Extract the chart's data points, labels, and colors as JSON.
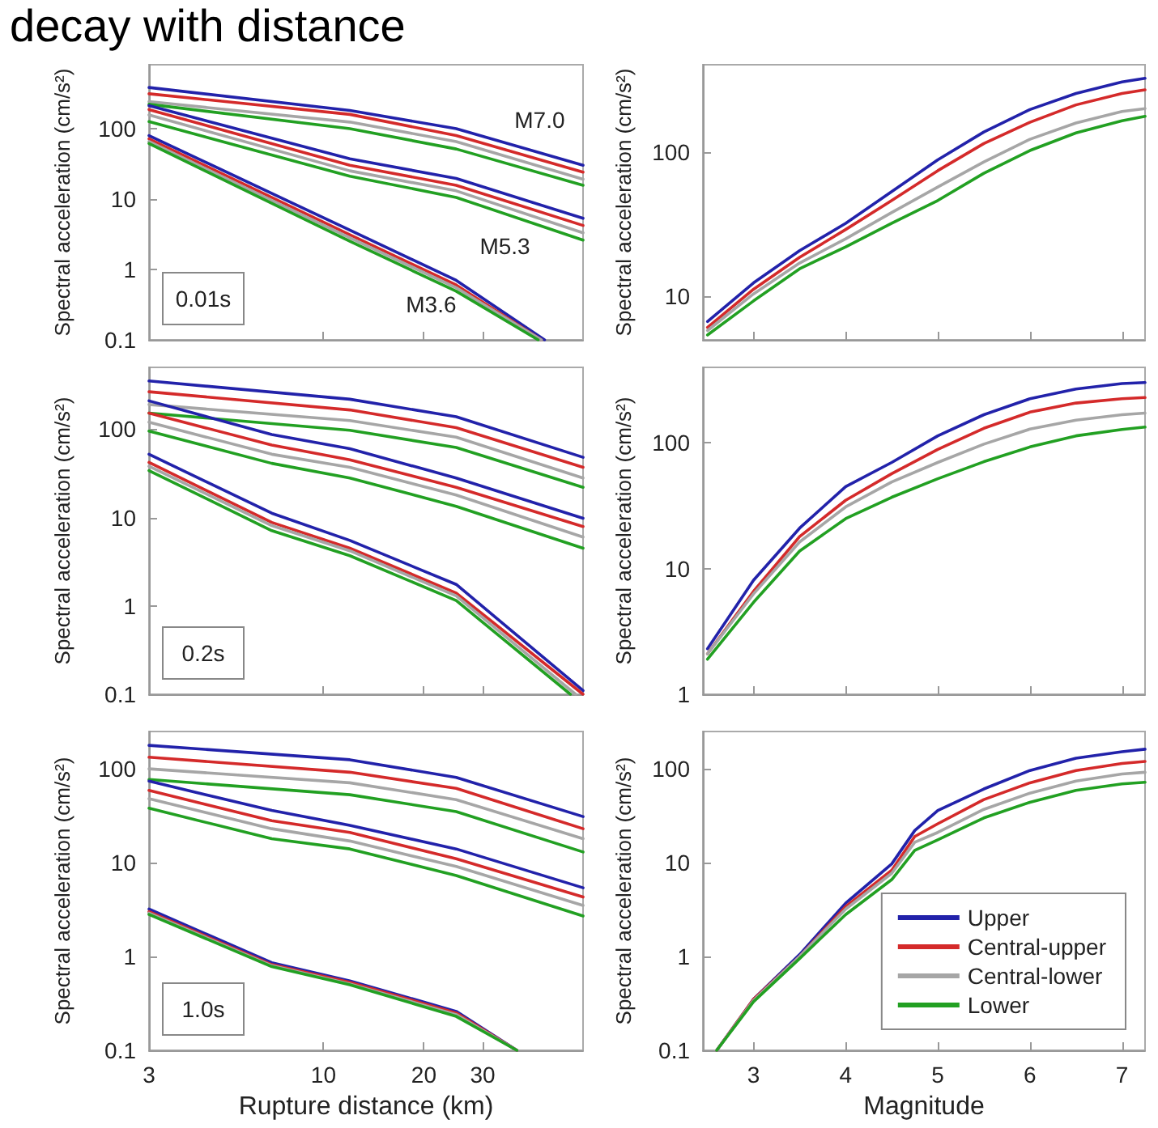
{
  "chart_data": [
    {
      "type": "line",
      "ylabel": "Spectral acceleration (cm/s²)",
      "log": "xy",
      "xlim": [
        3,
        60
      ],
      "xticks": [
        3,
        10,
        20,
        30
      ],
      "ylim": [
        0.1,
        800
      ],
      "yticks": [
        0.1,
        1,
        10,
        100
      ],
      "tick_labels": "y",
      "marker": "none",
      "grid": false,
      "annotations": [
        "0.01s",
        "decay with distance",
        "M7.0",
        "M5.3",
        "M3.6"
      ],
      "series": [
        {
          "color": "#2222aa",
          "x": [
            3,
            12,
            25,
            60
          ],
          "values": [
            380,
            180,
            99,
            30
          ]
        },
        {
          "color": "#d42a2a",
          "x": [
            3,
            12,
            25,
            60
          ],
          "values": [
            310,
            158,
            79,
            24
          ]
        },
        {
          "color": "#a6a6a6",
          "x": [
            3,
            12,
            25,
            60
          ],
          "values": [
            240,
            123,
            65,
            19
          ]
        },
        {
          "color": "#22a022",
          "x": [
            3,
            12,
            25,
            60
          ],
          "values": [
            220,
            99,
            51,
            15.6
          ]
        },
        {
          "color": "#2222aa",
          "x": [
            3,
            12,
            25,
            60
          ],
          "values": [
            210,
            37,
            19.5,
            5.3
          ]
        },
        {
          "color": "#d42a2a",
          "x": [
            3,
            12,
            25,
            60
          ],
          "values": [
            185,
            30,
            15.6,
            4.2
          ]
        },
        {
          "color": "#a6a6a6",
          "x": [
            3,
            12,
            25,
            60
          ],
          "values": [
            155,
            25,
            13,
            3.3
          ]
        },
        {
          "color": "#22a022",
          "x": [
            3,
            12,
            25,
            60
          ],
          "values": [
            125,
            21,
            10.5,
            2.6
          ]
        },
        {
          "color": "#2222aa",
          "x": [
            3,
            12,
            25,
            46
          ],
          "values": [
            79,
            3.6,
            0.7,
            0.1
          ]
        },
        {
          "color": "#d42a2a",
          "x": [
            3,
            12,
            25,
            45
          ],
          "values": [
            71,
            3.1,
            0.6,
            0.1
          ]
        },
        {
          "color": "#a6a6a6",
          "x": [
            3,
            12,
            25,
            45
          ],
          "values": [
            65,
            2.8,
            0.55,
            0.1
          ]
        },
        {
          "color": "#22a022",
          "x": [
            3,
            12,
            25,
            44
          ],
          "values": [
            61,
            2.5,
            0.49,
            0.1
          ]
        }
      ]
    },
    {
      "type": "line",
      "ylabel": "Spectral acceleration (cm/s²)",
      "log": "y",
      "xlim": [
        2.45,
        7.25
      ],
      "xticks": [
        3,
        4,
        5,
        6,
        7
      ],
      "ylim": [
        5,
        400
      ],
      "yticks": [
        10,
        100
      ],
      "tick_labels": "y",
      "marker": "none",
      "grid": false,
      "x": [
        2.5,
        3,
        3.5,
        4,
        4.5,
        5,
        5.5,
        6,
        6.5,
        7,
        7.25
      ],
      "series": [
        {
          "color": "#2222aa",
          "values": [
            6.7,
            12.4,
            20.7,
            32,
            53,
            88,
            137,
            196,
            253,
            304,
            322
          ]
        },
        {
          "color": "#d42a2a",
          "values": [
            6.1,
            11.2,
            18.6,
            29,
            46,
            74,
            114,
            160,
            211,
            253,
            268
          ]
        },
        {
          "color": "#a6a6a6",
          "values": [
            5.8,
            10.4,
            17,
            25,
            38,
            57,
            85,
            122,
            158,
            190,
            199
          ]
        },
        {
          "color": "#22a022",
          "values": [
            5.4,
            9.3,
            15.5,
            22,
            32,
            46,
            71,
            102,
            135,
            164,
            176
          ]
        }
      ]
    },
    {
      "type": "line",
      "ylabel": "Spectral acceleration (cm/s²)",
      "log": "xy",
      "xlim": [
        3,
        60
      ],
      "xticks": [
        3,
        10,
        20,
        30
      ],
      "ylim": [
        0.1,
        500
      ],
      "yticks": [
        0.1,
        1,
        10,
        100
      ],
      "tick_labels": "y",
      "marker": "none",
      "grid": false,
      "annotations": [
        "0.2s"
      ],
      "series": [
        {
          "color": "#2222aa",
          "x": [
            3,
            12,
            25,
            60
          ],
          "values": [
            351,
            218,
            138,
            48
          ]
        },
        {
          "color": "#d42a2a",
          "x": [
            3,
            12,
            25,
            60
          ],
          "values": [
            265,
            165,
            104,
            37
          ]
        },
        {
          "color": "#a6a6a6",
          "x": [
            3,
            12,
            25,
            60
          ],
          "values": [
            190,
            125,
            81,
            28
          ]
        },
        {
          "color": "#22a022",
          "x": [
            3,
            12,
            25,
            60
          ],
          "values": [
            152,
            97,
            62,
            22
          ]
        },
        {
          "color": "#2222aa",
          "x": [
            3,
            7,
            12,
            25,
            60
          ],
          "values": [
            209,
            87,
            60,
            28,
            9.8
          ]
        },
        {
          "color": "#d42a2a",
          "x": [
            3,
            7,
            12,
            25,
            60
          ],
          "values": [
            152,
            66,
            45,
            22,
            7.9
          ]
        },
        {
          "color": "#a6a6a6",
          "x": [
            3,
            7,
            12,
            25,
            60
          ],
          "values": [
            120,
            52,
            37,
            18,
            6
          ]
        },
        {
          "color": "#22a022",
          "x": [
            3,
            7,
            12,
            25,
            60
          ],
          "values": [
            95,
            41,
            28,
            13.4,
            4.5
          ]
        },
        {
          "color": "#2222aa",
          "x": [
            3,
            7,
            12,
            25,
            60
          ],
          "values": [
            52,
            11.2,
            5.5,
            1.75,
            0.11
          ]
        },
        {
          "color": "#d42a2a",
          "x": [
            3,
            7,
            12,
            25,
            60
          ],
          "values": [
            42,
            8.8,
            4.5,
            1.4,
            0.1
          ]
        },
        {
          "color": "#a6a6a6",
          "x": [
            3,
            7,
            12,
            25,
            57
          ],
          "values": [
            38,
            8.1,
            4.2,
            1.3,
            0.1
          ]
        },
        {
          "color": "#22a022",
          "x": [
            3,
            7,
            12,
            25,
            55
          ],
          "values": [
            34,
            7.1,
            3.7,
            1.15,
            0.1
          ]
        }
      ]
    },
    {
      "type": "line",
      "ylabel": "Spectral acceleration (cm/s²)",
      "log": "y",
      "xlim": [
        2.45,
        7.25
      ],
      "xticks": [
        3,
        4,
        5,
        6,
        7
      ],
      "ylim": [
        1,
        400
      ],
      "yticks": [
        1,
        10,
        100
      ],
      "tick_labels": "y",
      "marker": "none",
      "grid": false,
      "x": [
        2.5,
        3,
        3.5,
        4,
        4.5,
        5,
        5.5,
        6,
        6.5,
        7,
        7.25
      ],
      "series": [
        {
          "color": "#2222aa",
          "values": [
            2.3,
            8.1,
            21,
            45,
            70,
            114,
            168,
            225,
            269,
            297,
            303
          ]
        },
        {
          "color": "#d42a2a",
          "values": [
            2.1,
            6.6,
            18,
            35,
            57,
            89,
            131,
            176,
            208,
            225,
            230
          ]
        },
        {
          "color": "#a6a6a6",
          "values": [
            2.1,
            6.3,
            16.3,
            31,
            49,
            70,
            98,
            129,
            152,
            168,
            173
          ]
        },
        {
          "color": "#22a022",
          "values": [
            1.9,
            5.4,
            13.8,
            25,
            37,
            52,
            71,
            93,
            114,
            128,
            134
          ]
        }
      ]
    },
    {
      "type": "line",
      "xlabel": "Rupture distance (km)",
      "ylabel": "Spectral acceleration (cm/s²)",
      "log": "xy",
      "xlim": [
        3,
        60
      ],
      "xticks": [
        3,
        10,
        20,
        30
      ],
      "ylim": [
        0.1,
        250
      ],
      "yticks": [
        0.1,
        1,
        10,
        100
      ],
      "marker": "none",
      "grid": false,
      "annotations": [
        "1.0s"
      ],
      "series": [
        {
          "color": "#2222aa",
          "x": [
            3,
            12,
            25,
            60
          ],
          "values": [
            178,
            125,
            81,
            31
          ]
        },
        {
          "color": "#d42a2a",
          "x": [
            3,
            12,
            25,
            60
          ],
          "values": [
            133,
            92,
            62,
            23
          ]
        },
        {
          "color": "#a6a6a6",
          "x": [
            3,
            12,
            25,
            60
          ],
          "values": [
            100,
            71,
            47,
            18
          ]
        },
        {
          "color": "#22a022",
          "x": [
            3,
            12,
            25,
            60
          ],
          "values": [
            77,
            53,
            35,
            13
          ]
        },
        {
          "color": "#2222aa",
          "x": [
            3,
            7,
            12,
            25,
            60
          ],
          "values": [
            74,
            36,
            25,
            14,
            5.4
          ]
        },
        {
          "color": "#d42a2a",
          "x": [
            3,
            7,
            12,
            25,
            60
          ],
          "values": [
            59,
            28,
            21,
            11,
            4.3
          ]
        },
        {
          "color": "#a6a6a6",
          "x": [
            3,
            7,
            12,
            25,
            60
          ],
          "values": [
            48,
            23,
            17,
            9.1,
            3.5
          ]
        },
        {
          "color": "#22a022",
          "x": [
            3,
            7,
            12,
            25,
            60
          ],
          "values": [
            38,
            18,
            14,
            7.3,
            2.7
          ]
        },
        {
          "color": "#2222aa",
          "x": [
            3,
            7,
            12,
            25,
            38
          ],
          "values": [
            3.2,
            0.86,
            0.55,
            0.26,
            0.1
          ]
        },
        {
          "color": "#d42a2a",
          "x": [
            3,
            7,
            12,
            25,
            38
          ],
          "values": [
            3.0,
            0.82,
            0.53,
            0.25,
            0.1
          ]
        },
        {
          "color": "#a6a6a6",
          "x": [
            3,
            7,
            12,
            25,
            38
          ],
          "values": [
            2.9,
            0.8,
            0.51,
            0.24,
            0.1
          ]
        },
        {
          "color": "#22a022",
          "x": [
            3,
            7,
            12,
            25,
            38
          ],
          "values": [
            2.8,
            0.78,
            0.5,
            0.23,
            0.1
          ]
        }
      ]
    },
    {
      "type": "line",
      "xlabel": "Magnitude",
      "ylabel": "Spectral acceleration (cm/s²)",
      "log": "y",
      "xlim": [
        2.45,
        7.25
      ],
      "xticks": [
        3,
        4,
        5,
        6,
        7
      ],
      "ylim": [
        0.1,
        250
      ],
      "yticks": [
        0.1,
        1,
        10,
        100
      ],
      "marker": "none",
      "grid": false,
      "legend": "bottom right",
      "x": [
        2.6,
        3,
        3.5,
        4,
        4.5,
        4.75,
        5,
        5.5,
        6,
        6.5,
        7,
        7.25
      ],
      "series": [
        {
          "name": "Upper",
          "color": "#2222aa",
          "values": [
            0.1,
            0.35,
            1.05,
            3.7,
            9.7,
            22,
            36,
            61,
            96,
            130,
            152,
            162
          ]
        },
        {
          "name": "Central-upper",
          "color": "#d42a2a",
          "values": [
            0.1,
            0.35,
            1.0,
            3.4,
            8.3,
            19,
            26,
            47,
            71,
            96,
            114,
            120
          ]
        },
        {
          "name": "Central-lower",
          "color": "#a6a6a6",
          "values": [
            0.1,
            0.34,
            1.0,
            3.2,
            7.7,
            16.5,
            21,
            37,
            55,
            74,
            88,
            92
          ]
        },
        {
          "name": "Lower",
          "color": "#22a022",
          "values": [
            0.1,
            0.33,
            0.95,
            2.8,
            6.6,
            13.5,
            17.5,
            30,
            44,
            59,
            69,
            72
          ]
        }
      ]
    }
  ]
}
